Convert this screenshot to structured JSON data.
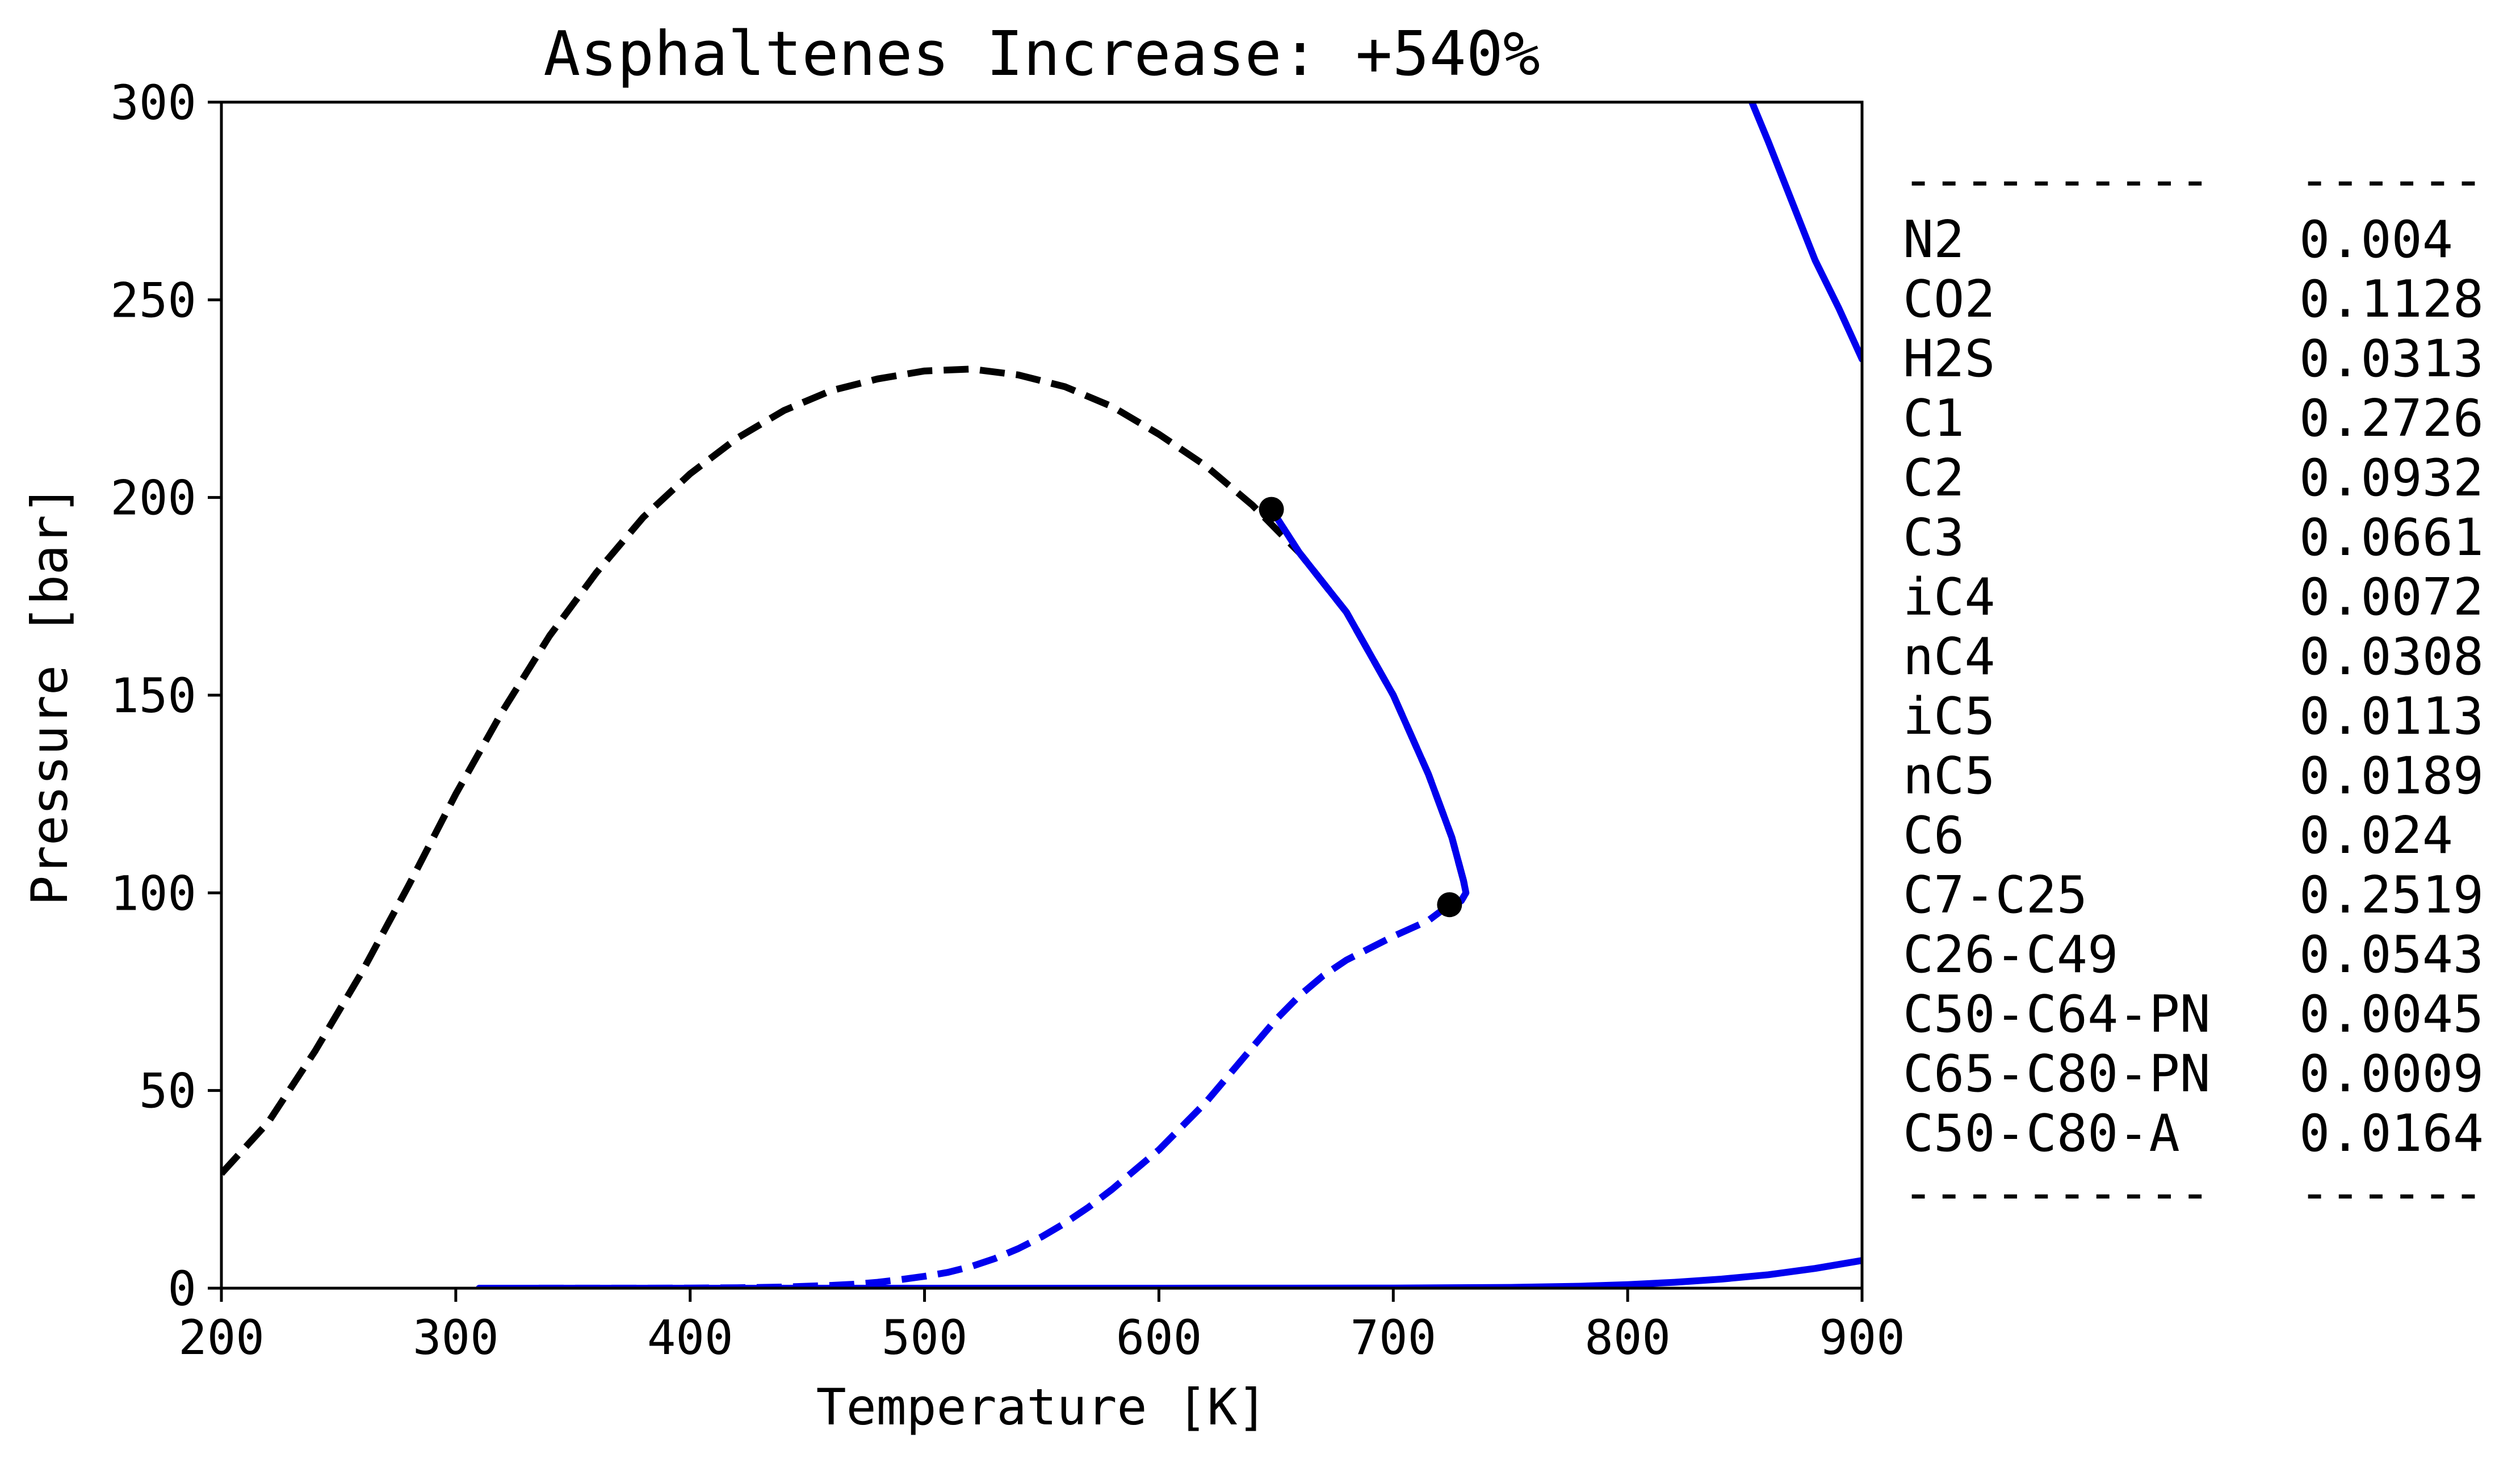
{
  "chart_data": {
    "type": "line",
    "title": "Asphaltenes Increase: +540%",
    "xlabel": "Temperature [K]",
    "ylabel": "Pressure [bar]",
    "xlim": [
      200,
      900
    ],
    "ylim": [
      0,
      300
    ],
    "xticks": [
      "200",
      "300",
      "400",
      "500",
      "600",
      "700",
      "800",
      "900"
    ],
    "yticks": [
      "0",
      "50",
      "100",
      "150",
      "200",
      "250",
      "300"
    ],
    "grid": false,
    "legend": "none",
    "colors": {
      "black": "#000000",
      "blue": "#0000ee"
    },
    "series": [
      {
        "color": "#000000",
        "style": "dashed",
        "x": [
          200,
          220,
          240,
          260,
          280,
          300,
          320,
          340,
          360,
          380,
          400,
          420,
          440,
          460,
          480,
          500,
          520,
          540,
          560,
          580,
          600,
          620,
          640,
          660,
          680,
          700,
          715,
          725,
          730,
          731,
          729,
          724
        ],
        "y": [
          29,
          42,
          60,
          80,
          102,
          125,
          146,
          165,
          181,
          195,
          206,
          215,
          222,
          227,
          230,
          232,
          232.5,
          231,
          228,
          223,
          216,
          208,
          198,
          186,
          171,
          150,
          130,
          114,
          103,
          100,
          98,
          97
        ]
      },
      {
        "color": "#0000ee",
        "style": "solid",
        "x": [
          648,
          660,
          680,
          700,
          715,
          725,
          730,
          731,
          729,
          724
        ],
        "y": [
          197,
          186,
          171,
          150,
          130,
          114,
          103,
          100,
          98,
          97
        ]
      },
      {
        "color": "#0000ee",
        "style": "dashed",
        "x": [
          724,
          715,
          700,
          690,
          680,
          670,
          660,
          650,
          640,
          630,
          620,
          610,
          600,
          590,
          580,
          570,
          560,
          550,
          540,
          530,
          520,
          510,
          500,
          490,
          480,
          470,
          460,
          450,
          440,
          430,
          420,
          410,
          400,
          380,
          350,
          310
        ],
        "y": [
          97,
          93,
          89,
          86,
          83,
          79,
          74,
          68,
          61,
          54,
          47,
          41,
          35,
          30,
          25,
          20.5,
          16.5,
          13,
          10,
          7.5,
          5.5,
          4,
          3,
          2.2,
          1.5,
          1,
          0.7,
          0.5,
          0.3,
          0.2,
          0.12,
          0.07,
          0.04,
          0.02,
          0.01,
          0
        ]
      },
      {
        "color": "#0000ee",
        "style": "solid",
        "x": [
          310,
          400,
          500,
          600,
          700,
          750,
          780,
          800,
          820,
          840,
          860,
          880,
          900
        ],
        "y": [
          0,
          0,
          0,
          0,
          0.05,
          0.2,
          0.5,
          0.9,
          1.5,
          2.3,
          3.4,
          5,
          7
        ]
      },
      {
        "color": "#0000ee",
        "style": "solid",
        "x": [
          853,
          860,
          870,
          880,
          890,
          900
        ],
        "y": [
          300,
          290,
          275,
          260,
          248,
          235
        ]
      }
    ],
    "points": [
      {
        "x": 648,
        "y": 197
      },
      {
        "x": 724,
        "y": 97
      }
    ]
  },
  "composition_table": {
    "separator_name": "----------",
    "separator_value": "------",
    "rows": [
      {
        "name": "N2",
        "value": "0.004"
      },
      {
        "name": "CO2",
        "value": "0.1128"
      },
      {
        "name": "H2S",
        "value": "0.0313"
      },
      {
        "name": "C1",
        "value": "0.2726"
      },
      {
        "name": "C2",
        "value": "0.0932"
      },
      {
        "name": "C3",
        "value": "0.0661"
      },
      {
        "name": "iC4",
        "value": "0.0072"
      },
      {
        "name": "nC4",
        "value": "0.0308"
      },
      {
        "name": "iC5",
        "value": "0.0113"
      },
      {
        "name": "nC5",
        "value": "0.0189"
      },
      {
        "name": "C6",
        "value": "0.024"
      },
      {
        "name": "C7-C25",
        "value": "0.2519"
      },
      {
        "name": "C26-C49",
        "value": "0.0543"
      },
      {
        "name": "C50-C64-PN",
        "value": "0.0045"
      },
      {
        "name": "C65-C80-PN",
        "value": "0.0009"
      },
      {
        "name": "C50-C80-A",
        "value": "0.0164"
      }
    ]
  }
}
